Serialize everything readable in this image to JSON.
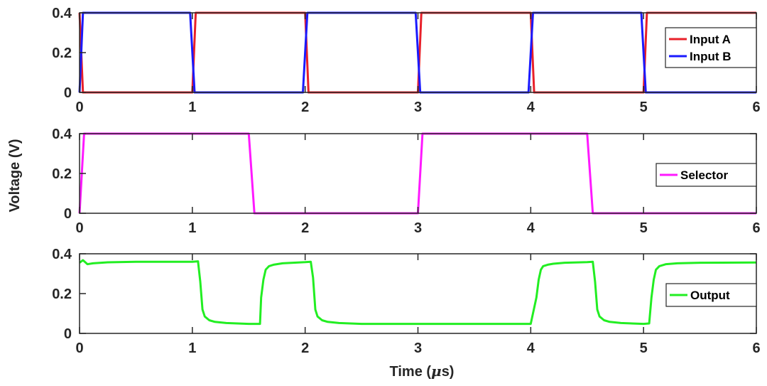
{
  "figure": {
    "ylabel": "Voltage (V)",
    "xlabel_prefix": "Time (",
    "xlabel_mu": "μ",
    "xlabel_suffix": "s)"
  },
  "chart_data": [
    {
      "type": "line",
      "xlim": [
        0,
        6
      ],
      "ylim": [
        0,
        0.4
      ],
      "xticks": [
        0,
        1,
        2,
        3,
        4,
        5,
        6
      ],
      "yticks": [
        0,
        0.2,
        0.4
      ],
      "ytick_labels": [
        "0",
        "0.2",
        "0.4"
      ],
      "legend_position": "right",
      "series": [
        {
          "name": "Input A",
          "color": "#e8202a",
          "x": [
            0,
            0.03,
            1.0,
            1.03,
            2.0,
            2.03,
            3.0,
            3.03,
            4.0,
            4.03,
            5.0,
            5.03,
            6.0
          ],
          "y": [
            0.4,
            0,
            0,
            0.4,
            0.4,
            0,
            0,
            0.4,
            0.4,
            0,
            0,
            0.4,
            0.4
          ]
        },
        {
          "name": "Input B",
          "color": "#1a1aff",
          "x": [
            0,
            0.03,
            0.98,
            1.02,
            1.98,
            2.02,
            2.98,
            3.02,
            3.98,
            4.02,
            4.98,
            5.02,
            6.0
          ],
          "y": [
            0,
            0.4,
            0.4,
            0,
            0,
            0.4,
            0.4,
            0,
            0,
            0.4,
            0.4,
            0,
            0
          ]
        }
      ]
    },
    {
      "type": "line",
      "xlim": [
        0,
        6
      ],
      "ylim": [
        0,
        0.4
      ],
      "xticks": [
        0,
        1,
        2,
        3,
        4,
        5,
        6
      ],
      "yticks": [
        0,
        0.2,
        0.4
      ],
      "ytick_labels": [
        "0",
        "0.2",
        "0.4"
      ],
      "legend_position": "right",
      "series": [
        {
          "name": "Selector",
          "color": "#ff19ff",
          "x": [
            0,
            0.04,
            1.5,
            1.55,
            3.0,
            3.04,
            4.5,
            4.55,
            6.0
          ],
          "y": [
            0,
            0.4,
            0.4,
            0,
            0,
            0.4,
            0.4,
            0,
            0
          ]
        }
      ]
    },
    {
      "type": "line",
      "xlim": [
        0,
        6
      ],
      "ylim": [
        0,
        0.4
      ],
      "xticks": [
        0,
        1,
        2,
        3,
        4,
        5,
        6
      ],
      "yticks": [
        0,
        0.2,
        0.4
      ],
      "ytick_labels": [
        "0",
        "0.2",
        "0.4"
      ],
      "legend_position": "right",
      "series": [
        {
          "name": "Output",
          "color": "#22ee22",
          "x": [
            0,
            0.03,
            0.07,
            0.12,
            0.25,
            0.5,
            1.0,
            1.05,
            1.07,
            1.09,
            1.11,
            1.15,
            1.2,
            1.3,
            1.5,
            1.6,
            1.61,
            1.63,
            1.65,
            1.68,
            1.72,
            1.8,
            2.0,
            2.05,
            2.07,
            2.09,
            2.11,
            2.15,
            2.2,
            2.3,
            2.5,
            3.0,
            3.5,
            4.0,
            4.05,
            4.07,
            4.09,
            4.11,
            4.15,
            4.2,
            4.3,
            4.5,
            4.55,
            4.57,
            4.59,
            4.61,
            4.65,
            4.7,
            4.8,
            5.0,
            5.05,
            5.07,
            5.09,
            5.11,
            5.14,
            5.2,
            5.3,
            5.5,
            6.0
          ],
          "y": [
            0.355,
            0.368,
            0.348,
            0.352,
            0.357,
            0.36,
            0.36,
            0.362,
            0.26,
            0.12,
            0.085,
            0.066,
            0.058,
            0.052,
            0.048,
            0.048,
            0.18,
            0.27,
            0.32,
            0.338,
            0.345,
            0.352,
            0.358,
            0.36,
            0.28,
            0.12,
            0.085,
            0.066,
            0.058,
            0.052,
            0.048,
            0.048,
            0.048,
            0.048,
            0.18,
            0.27,
            0.32,
            0.338,
            0.345,
            0.35,
            0.355,
            0.358,
            0.36,
            0.26,
            0.12,
            0.085,
            0.066,
            0.058,
            0.052,
            0.048,
            0.05,
            0.18,
            0.27,
            0.32,
            0.338,
            0.348,
            0.352,
            0.355,
            0.356
          ]
        }
      ]
    }
  ]
}
